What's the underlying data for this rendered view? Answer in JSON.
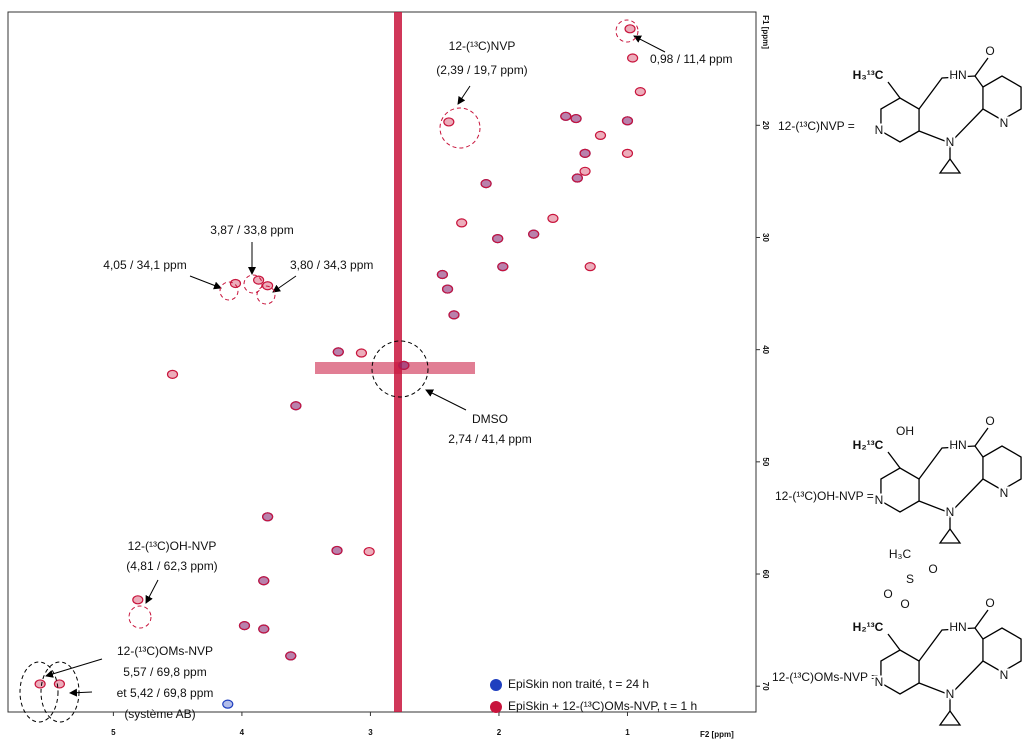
{
  "chart_data": {
    "type": "scatter",
    "x_label": "F2 [ppm]",
    "y_label": "F1 [ppm]",
    "xlim": [
      5.82,
      0
    ],
    "ylim": [
      9.9,
      72.3
    ],
    "xticks": [
      5,
      4,
      3,
      2,
      1
    ],
    "yticks": [
      20,
      30,
      40,
      50,
      60,
      70
    ],
    "legend": "lower right",
    "series": [
      {
        "name": "EpiSkin non traité, t = 24 h",
        "color": "#1f3fbf",
        "x": [
          1.48,
          1.4,
          1.0,
          1.33,
          2.1,
          1.73,
          2.01,
          1.97,
          2.44,
          2.4,
          2.35,
          3.25,
          3.58,
          3.8,
          3.26,
          3.83,
          3.98,
          3.83,
          3.62,
          1.39,
          2.74,
          4.11
        ],
        "y": [
          19.2,
          19.4,
          19.6,
          22.5,
          25.2,
          29.7,
          30.1,
          32.6,
          33.3,
          34.6,
          36.9,
          40.2,
          45.0,
          54.9,
          57.9,
          60.6,
          64.6,
          64.9,
          67.3,
          24.7,
          41.4,
          71.6
        ]
      },
      {
        "name": "EpiSkin + 12-(¹³C)OMs-NVP, t = 1 h",
        "color": "#c8143c",
        "x": [
          0.98,
          0.96,
          0.9,
          1.48,
          1.4,
          1.21,
          1.0,
          1.0,
          1.33,
          1.33,
          1.39,
          2.1,
          1.58,
          1.73,
          2.01,
          2.29,
          1.97,
          1.29,
          2.44,
          2.4,
          2.35,
          4.05,
          3.87,
          3.8,
          3.25,
          3.07,
          3.58,
          3.8,
          3.26,
          3.01,
          3.83,
          3.98,
          3.83,
          3.62,
          4.81,
          5.57,
          5.42,
          4.54,
          2.74,
          2.39
        ],
        "y": [
          11.4,
          14.0,
          17.0,
          19.2,
          19.4,
          20.9,
          19.6,
          22.5,
          22.5,
          24.1,
          24.7,
          25.2,
          28.3,
          29.7,
          30.1,
          28.7,
          32.6,
          32.6,
          33.3,
          34.6,
          36.9,
          34.1,
          33.8,
          34.3,
          40.2,
          40.3,
          45.0,
          54.9,
          57.9,
          58.0,
          60.6,
          64.6,
          64.9,
          67.3,
          62.3,
          69.8,
          69.8,
          42.2,
          41.4,
          19.7
        ]
      }
    ],
    "annotations": [
      {
        "lines": [
          "0,98 / 11,4 ppm"
        ]
      },
      {
        "lines": [
          "12-(¹³C)NVP",
          "(2,39 / 19,7 ppm)"
        ]
      },
      {
        "lines": [
          "3,87 / 33,8 ppm"
        ]
      },
      {
        "lines": [
          "4,05 / 34,1 ppm"
        ]
      },
      {
        "lines": [
          "3,80 / 34,3 ppm"
        ]
      },
      {
        "lines": [
          "DMSO",
          "2,74 / 41,4 ppm"
        ]
      },
      {
        "lines": [
          "12-(¹³C)OH-NVP",
          "(4,81 / 62,3 ppm)"
        ]
      },
      {
        "lines": [
          "12-(¹³C)OMs-NVP",
          "5,57 / 69,8 ppm",
          "et 5,42 / 69,8 ppm",
          "(système AB)"
        ]
      }
    ],
    "structures": [
      {
        "label": "12-(¹³C)NVP =",
        "ring_atoms": [
          "HN",
          "O",
          "N",
          "N",
          "N"
        ],
        "substituent": [
          "H₃¹³C"
        ]
      },
      {
        "label": "12-(¹³C)OH-NVP =",
        "ring_atoms": [
          "HN",
          "O",
          "N",
          "N",
          "N"
        ],
        "substituent": [
          "H₂¹³C",
          "OH"
        ]
      },
      {
        "label": "12-(¹³C)OMs-NVP =",
        "ring_atoms": [
          "HN",
          "O",
          "N",
          "N",
          "N"
        ],
        "substituent": [
          "H₂¹³C",
          "O",
          "S",
          "O",
          "O",
          "H₃C"
        ]
      }
    ]
  }
}
